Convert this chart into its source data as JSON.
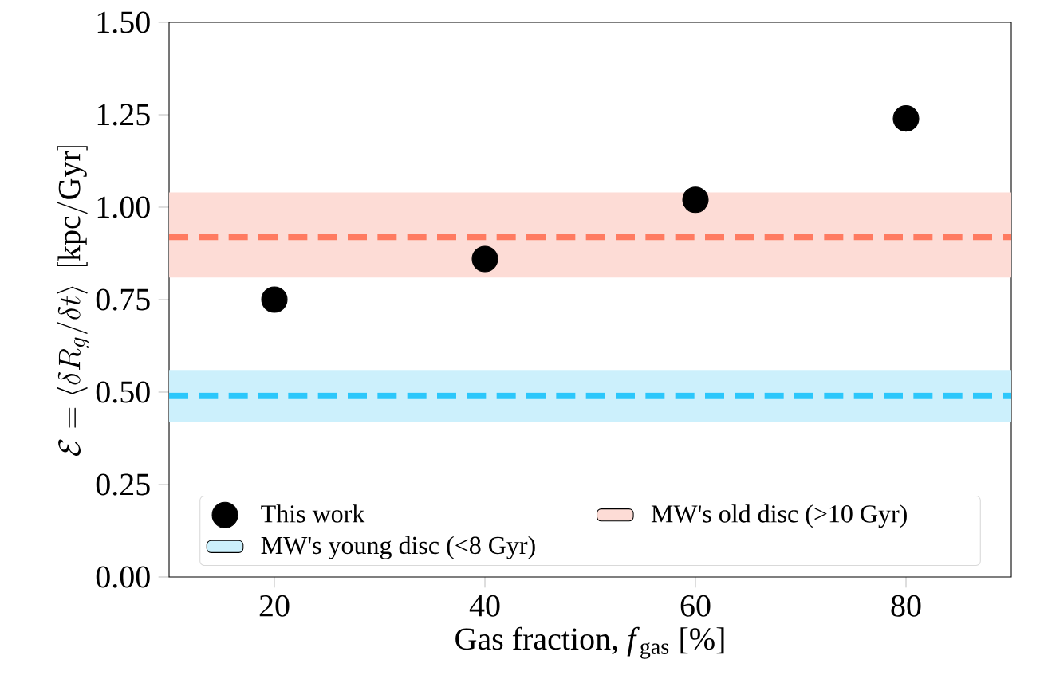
{
  "chart_data": {
    "type": "scatter",
    "xlabel": "Gas fraction, *f*$_{gas}$ [%]",
    "ylabel": "\\mathcal{E} = \\left\\langle \\delta R_g / \\delta t \\right\\rangle \\; \\mathrm{[kpc/Gyr]}",
    "x": [
      20,
      40,
      60,
      80
    ],
    "series": [
      {
        "name": "This work",
        "color": "#000000",
        "values": [
          0.75,
          0.86,
          1.02,
          1.24
        ]
      }
    ],
    "marker": "circle",
    "xlim": [
      10,
      90
    ],
    "ylim": [
      0,
      1.5
    ],
    "xticks": [
      20,
      40,
      60,
      80
    ],
    "yticks": [
      {
        "value": 0,
        "label": "0.00"
      },
      {
        "value": 0.25,
        "label": "0.25"
      },
      {
        "value": 0.5,
        "label": "0.50"
      },
      {
        "value": 0.75,
        "label": "0.75"
      },
      {
        "value": 1,
        "label": "1.00"
      },
      {
        "value": 1.25,
        "label": "1.25"
      },
      {
        "value": 1.5,
        "label": "1.50"
      }
    ],
    "ref_lines": [
      {
        "axis": "y",
        "value": 0.92,
        "color": "#ff7b61",
        "line_style": "dashed"
      },
      {
        "axis": "y",
        "value": 0.49,
        "color": "#2cc7fb",
        "line_style": "dashed"
      }
    ],
    "bands": [
      {
        "axis": "y",
        "from": 0.81,
        "to": 1.04,
        "label": "MW's old disc (>10 Gyr)",
        "color": "#fddcd6"
      },
      {
        "axis": "y",
        "from": 0.42,
        "to": 0.56,
        "label": "MW's young disc (<8 Gyr)",
        "color": "#ccf0fc"
      }
    ],
    "legend": "bottom",
    "grid": false
  }
}
